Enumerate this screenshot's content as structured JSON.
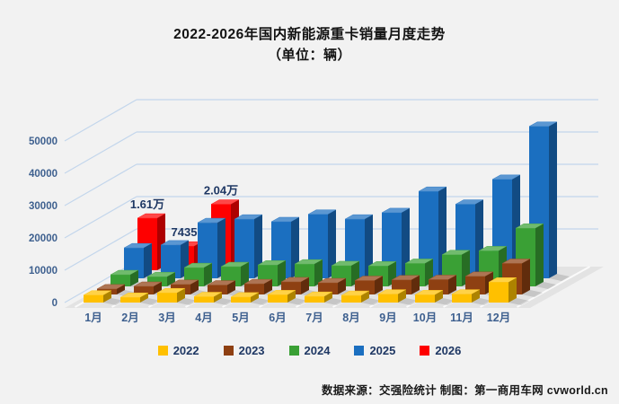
{
  "title": "2022-2026年国内新能源重卡销量月度走势",
  "subtitle": "（单位：辆）",
  "footer": {
    "source_text": "数据来源：交强险统计 制图：第一商用车网 cvworld.cn"
  },
  "colors": {
    "axis_text": "#3E608F",
    "annotation_text": "#1F3864",
    "gridline": "#C3D6EC",
    "floor": "#E3E3E3",
    "floor_line": "#FAFAFA"
  },
  "chart_data": {
    "type": "bar",
    "projection": "3d",
    "title": "2022-2026年国内新能源重卡销量月度走势",
    "subtitle": "（单位：辆）",
    "categories": [
      "1月",
      "2月",
      "3月",
      "4月",
      "5月",
      "6月",
      "7月",
      "8月",
      "9月",
      "10月",
      "11月",
      "12月"
    ],
    "yticks": [
      0,
      10000,
      20000,
      30000,
      40000,
      50000
    ],
    "ylim": [
      0,
      50000
    ],
    "grid": true,
    "legend_position": "bottom",
    "series": [
      {
        "name": "2022",
        "color": "#FFC000",
        "values": [
          2300,
          1600,
          3000,
          1800,
          1700,
          2400,
          1900,
          2200,
          2600,
          2400,
          2600,
          6300
        ]
      },
      {
        "name": "2023",
        "color": "#8E4012",
        "values": [
          1700,
          2500,
          3100,
          2900,
          3300,
          3900,
          3600,
          4300,
          4500,
          4600,
          5600,
          9600
        ]
      },
      {
        "name": "2024",
        "color": "#3AA035",
        "values": [
          3600,
          3000,
          5800,
          6100,
          6600,
          6900,
          6400,
          6300,
          7100,
          9800,
          11000,
          18000
        ]
      },
      {
        "name": "2025",
        "color": "#1B6FC0",
        "values": [
          9400,
          10300,
          17200,
          18300,
          17500,
          19800,
          18300,
          20300,
          26900,
          22900,
          30600,
          47000
        ]
      },
      {
        "name": "2026",
        "color": "#FE0000",
        "values": [
          16100,
          7435,
          20400,
          null,
          null,
          null,
          null,
          null,
          null,
          null,
          null,
          null
        ]
      }
    ],
    "annotations": [
      {
        "series": "2026",
        "category": "1月",
        "text": "1.61万"
      },
      {
        "series": "2026",
        "category": "2月",
        "text": "7435"
      },
      {
        "series": "2026",
        "category": "3月",
        "text": "2.04万"
      }
    ]
  }
}
